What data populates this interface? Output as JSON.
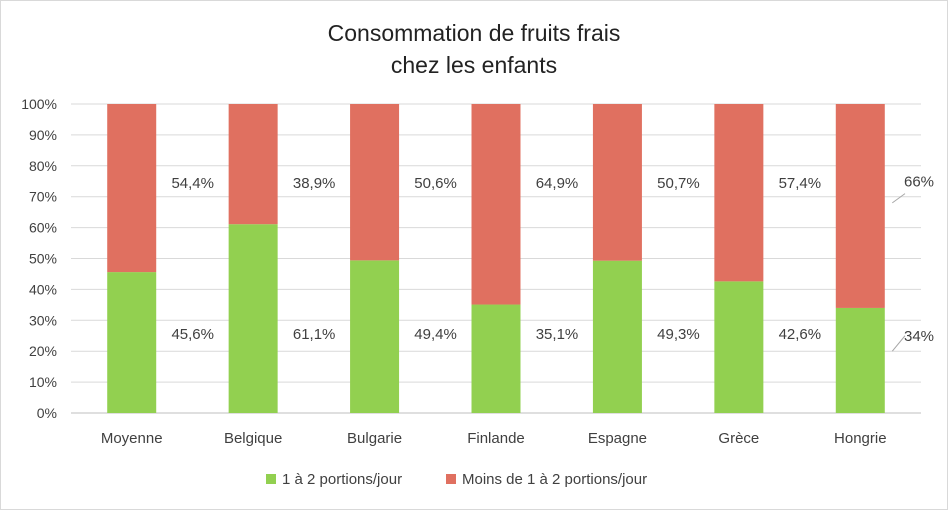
{
  "chart_data": {
    "type": "bar",
    "stacked": true,
    "title": [
      "Consommation de fruits frais",
      "chez les enfants"
    ],
    "categories": [
      "Moyenne",
      "Belgique",
      "Bulgarie",
      "Finlande",
      "Espagne",
      "Grèce",
      "Hongrie"
    ],
    "series": [
      {
        "name": "1 à 2 portions/jour",
        "color": "#92d050",
        "values": [
          45.6,
          61.1,
          49.4,
          35.1,
          49.3,
          42.6,
          34
        ],
        "labels": [
          "45,6%",
          "61,1%",
          "49,4%",
          "35,1%",
          "49,3%",
          "42,6%",
          "34%"
        ]
      },
      {
        "name": "Moins de 1 à 2 portions/jour",
        "color": "#e07060",
        "values": [
          54.4,
          38.9,
          50.6,
          64.9,
          50.7,
          57.4,
          66
        ],
        "labels": [
          "54,4%",
          "38,9%",
          "50,6%",
          "64,9%",
          "50,7%",
          "57,4%",
          "66%"
        ]
      }
    ],
    "ylim": [
      0,
      100
    ],
    "yticks": [
      "0%",
      "10%",
      "20%",
      "30%",
      "40%",
      "50%",
      "60%",
      "70%",
      "80%",
      "90%",
      "100%"
    ],
    "grid": true,
    "legend_position": "bottom"
  }
}
